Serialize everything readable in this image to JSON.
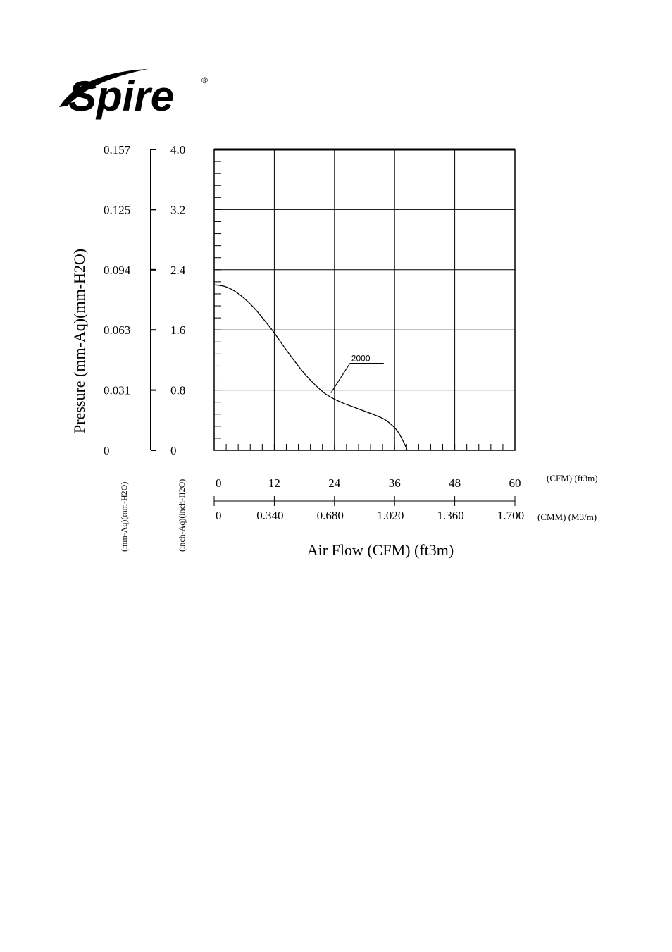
{
  "brand": {
    "logo_text": "Spire",
    "registered_mark": "®"
  },
  "chart_data": {
    "type": "line",
    "xlabel": "Air Flow (CFM) (ft3m)",
    "ylabel": "Pressure (mm-Aq)(mm-H2O)",
    "x_axis_primary": {
      "ticks": [
        0,
        12,
        24,
        36,
        48,
        60
      ],
      "tick_labels": [
        "0",
        "12",
        "24",
        "36",
        "48",
        "60"
      ],
      "unit_label": "(CFM) (ft3m)",
      "xlim": [
        0,
        60
      ]
    },
    "x_axis_secondary": {
      "tick_labels": [
        "0",
        "0.340",
        "0.680",
        "1.020",
        "1.360",
        "1.700"
      ],
      "unit_label": "(CMM) (M3/m)"
    },
    "y_axis_inch": {
      "ticks": [
        0,
        0.8,
        1.6,
        2.4,
        3.2,
        4.0
      ],
      "tick_labels": [
        "0",
        "0.8",
        "1.6",
        "2.4",
        "3.2",
        "4.0"
      ],
      "unit_label": "(inch-Aq)(inch-H2O)",
      "ylim": [
        0,
        4.0
      ]
    },
    "y_axis_mm": {
      "tick_labels": [
        "0",
        "0.031",
        "0.063",
        "0.094",
        "0.125",
        "0.157"
      ],
      "unit_label": "(mm-Aq)(mm-H2O)"
    },
    "grid": true,
    "series": [
      {
        "name": "2000",
        "x": [
          0,
          2,
          4,
          6,
          8,
          10,
          12,
          14,
          16,
          18,
          20,
          22,
          24,
          26,
          28,
          30,
          32,
          34,
          36,
          37,
          38,
          38.5
        ],
        "y": [
          2.2,
          2.18,
          2.12,
          2.02,
          1.89,
          1.73,
          1.56,
          1.37,
          1.19,
          1.02,
          0.88,
          0.76,
          0.68,
          0.62,
          0.57,
          0.52,
          0.47,
          0.41,
          0.3,
          0.21,
          0.08,
          0.0
        ]
      }
    ],
    "annotations": [
      {
        "text": "2000",
        "x": 24,
        "y": 0.8
      }
    ]
  }
}
